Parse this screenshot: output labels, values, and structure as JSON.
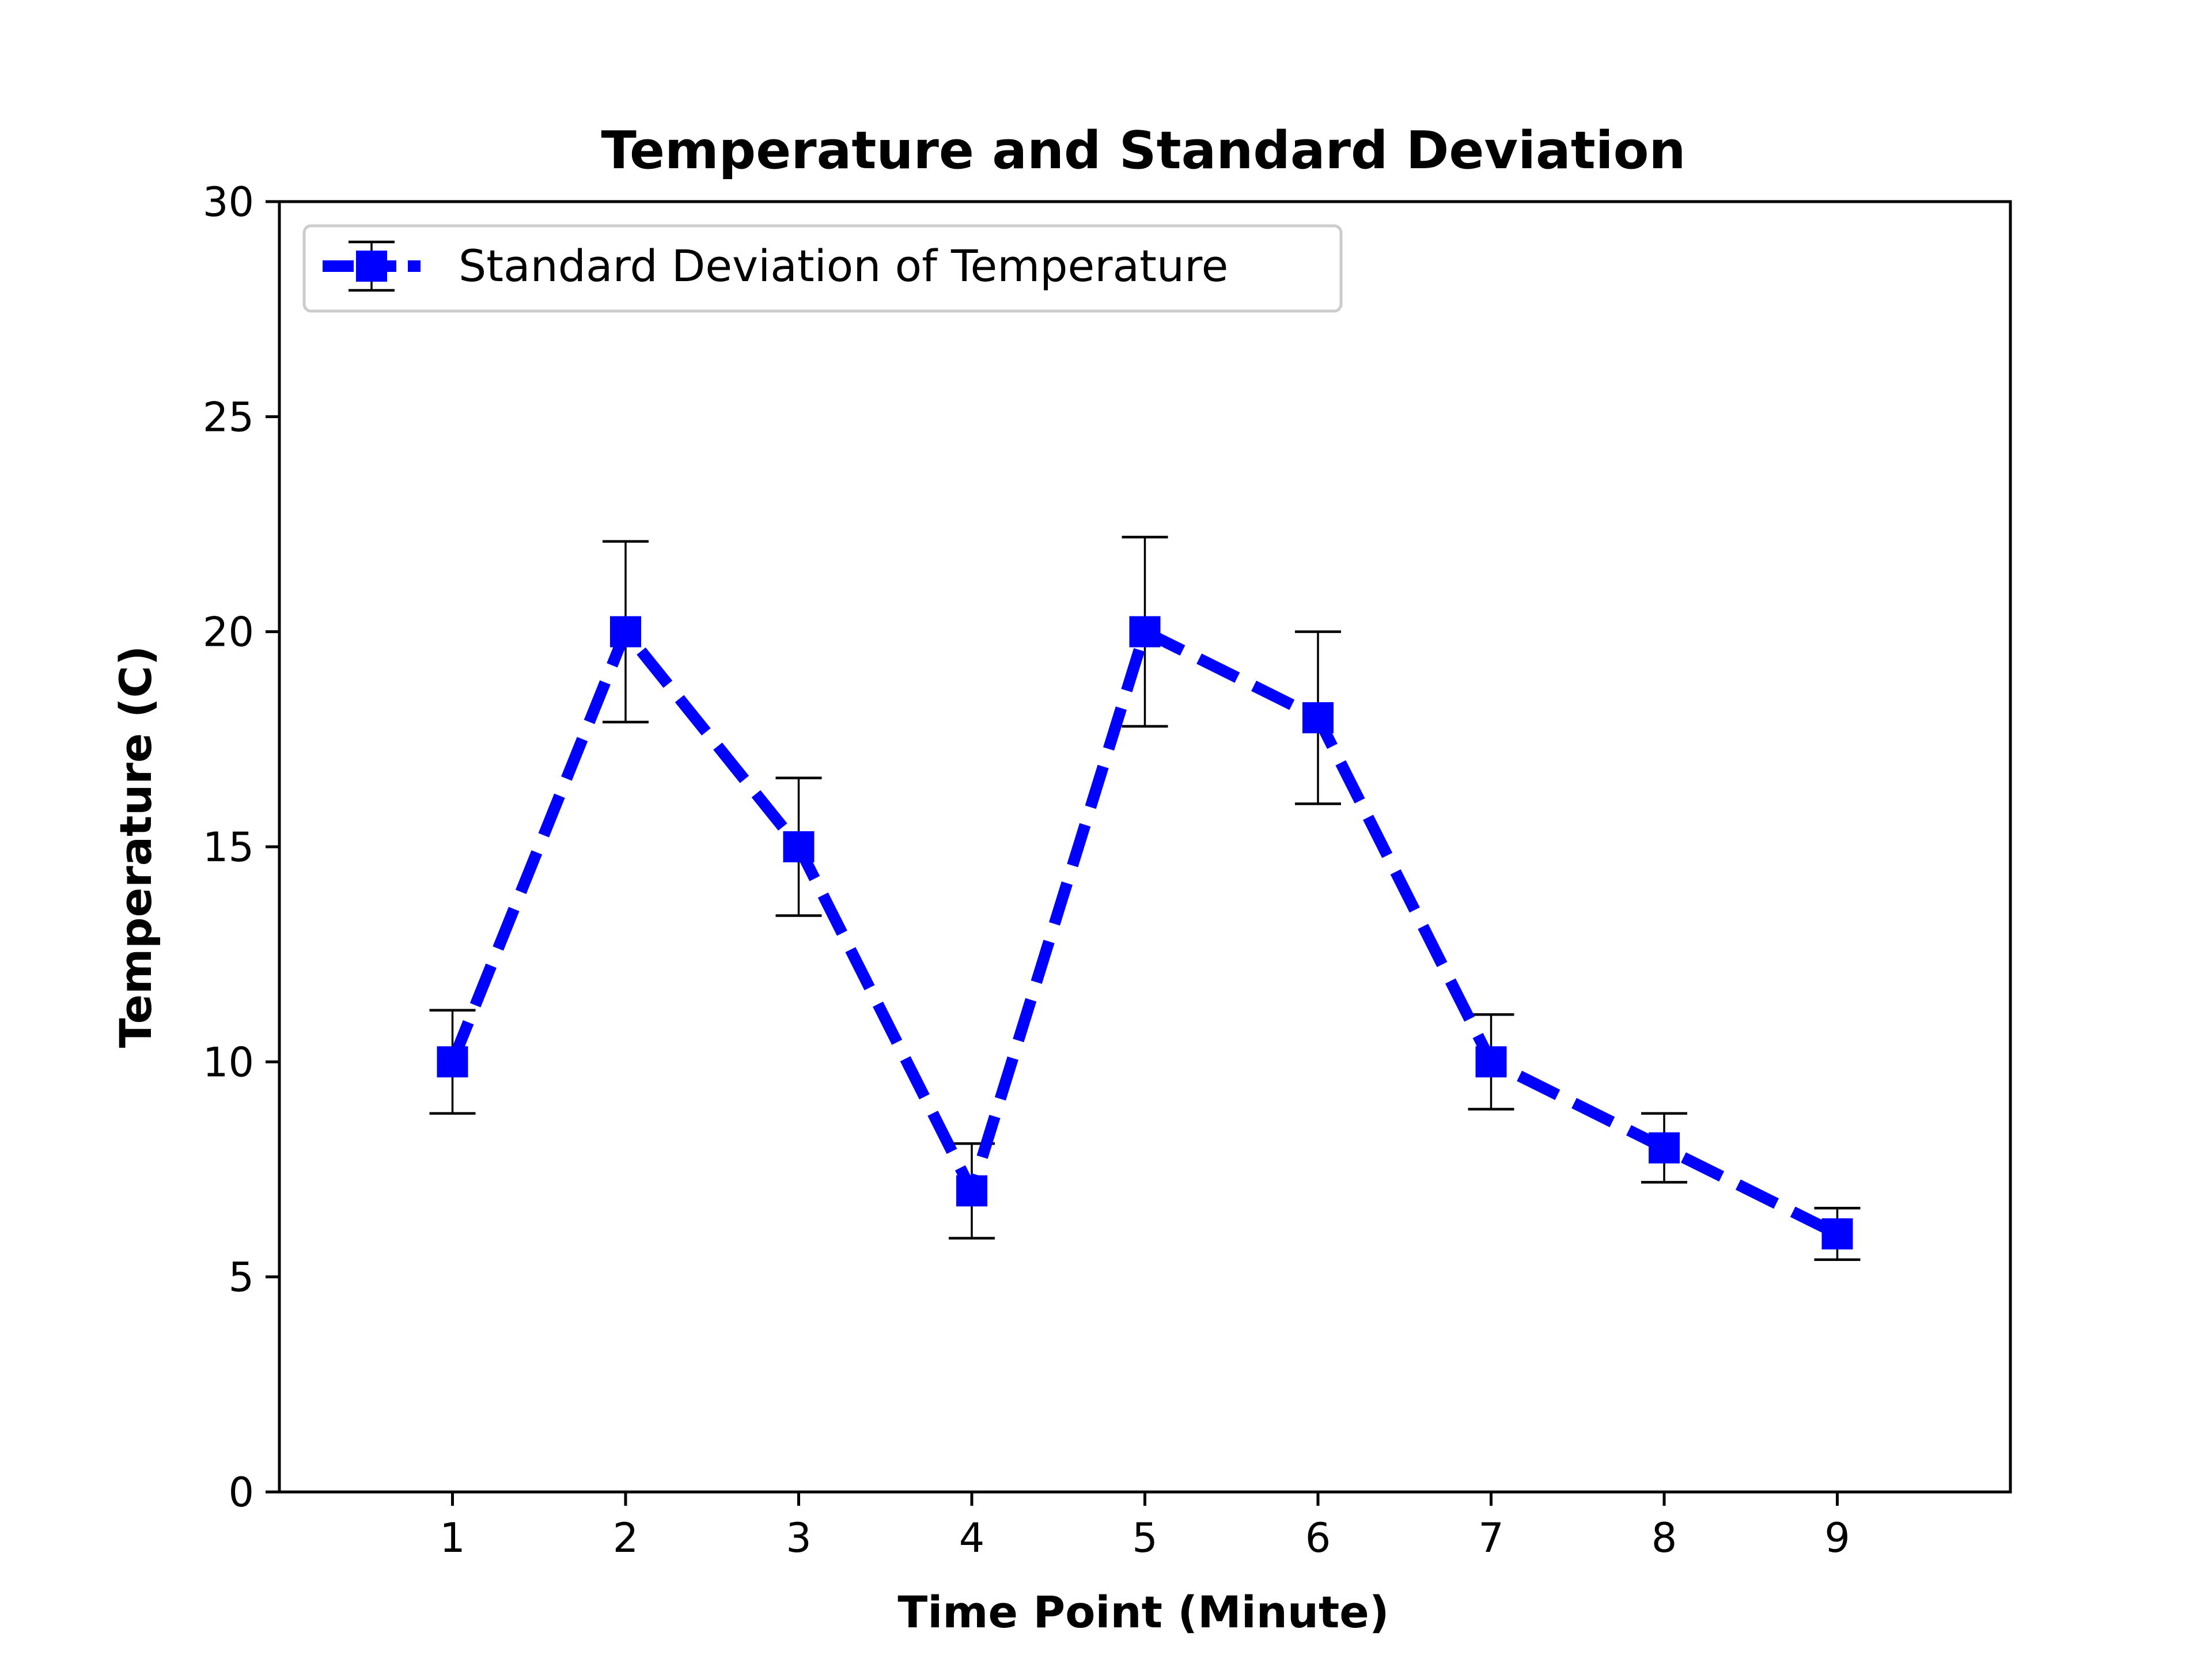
{
  "chart_data": {
    "type": "line",
    "title": "Temperature and Standard Deviation",
    "xlabel": "Time Point (Minute)",
    "ylabel": "Temperature (C)",
    "x": [
      1,
      2,
      3,
      4,
      5,
      6,
      7,
      8,
      9
    ],
    "x_tick_labels": [
      "1",
      "2",
      "3",
      "4",
      "5",
      "6",
      "7",
      "8",
      "9"
    ],
    "y_tick_labels": [
      "0",
      "5",
      "10",
      "15",
      "20",
      "25",
      "30"
    ],
    "y_ticks": [
      0,
      5,
      10,
      15,
      20,
      25,
      30
    ],
    "xlim": [
      0,
      10
    ],
    "ylim": [
      0,
      30
    ],
    "grid": false,
    "legend_position": "upper-left",
    "series": [
      {
        "name": "Standard Deviation of Temperature",
        "values": [
          10,
          20,
          15,
          7,
          20,
          18,
          10,
          8,
          6
        ],
        "error": [
          1.2,
          2.1,
          1.6,
          1.1,
          2.2,
          2.0,
          1.1,
          0.8,
          0.6
        ],
        "color": "#0000ff",
        "errorbar_color": "#000000",
        "line_style": "dashed",
        "marker": "square"
      }
    ]
  }
}
